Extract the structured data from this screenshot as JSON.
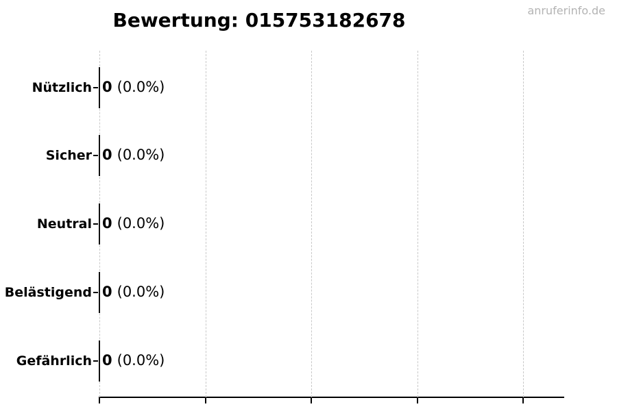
{
  "watermark": "anruferinfo.de",
  "chart_data": {
    "type": "bar",
    "orientation": "horizontal",
    "title": "Bewertung: 015753182678",
    "categories": [
      "Nützlich",
      "Sicher",
      "Neutral",
      "Belästigend",
      "Gefährlich"
    ],
    "values": [
      0,
      0,
      0,
      0,
      0
    ],
    "percent_labels": [
      "(0.0%)",
      "(0.0%)",
      "(0.0%)",
      "(0.0%)",
      "(0.0%)"
    ],
    "value_label_format": "<count> (<percent>)",
    "x_tick_count": 5,
    "x_tick_labels_visible": false,
    "grid": "vertical-dashed",
    "legend_position": "none",
    "colors": {
      "text": "#000000",
      "axis": "#000000",
      "bar_edge": "#111111",
      "grid": "#c8c8c8",
      "watermark": "#b3b3b3",
      "background": "#ffffff"
    }
  }
}
